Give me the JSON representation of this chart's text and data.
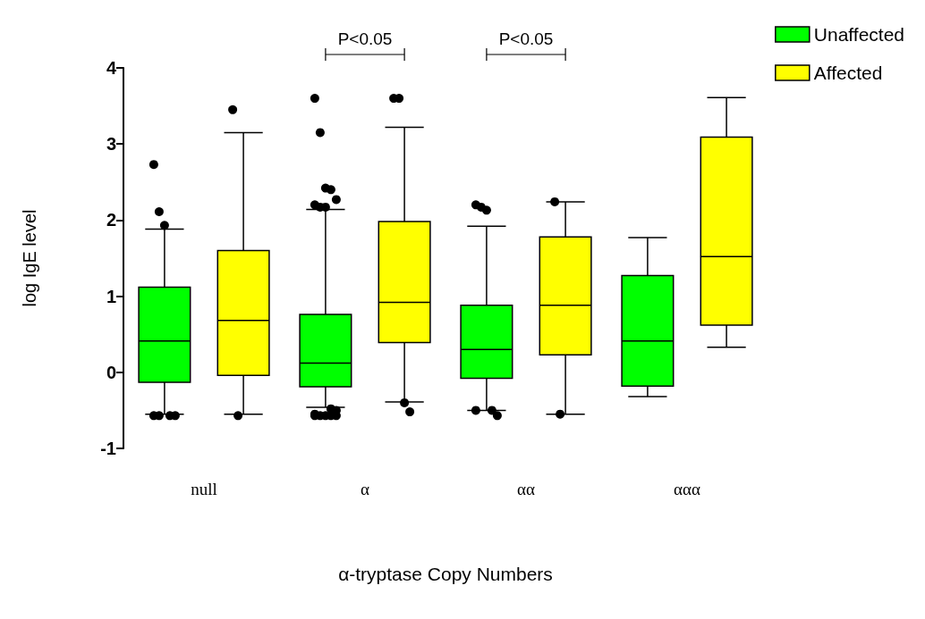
{
  "chart_data": {
    "type": "box",
    "xlabel": "α-tryptase Copy Numbers",
    "ylabel": "log IgE level",
    "categories": [
      "null",
      "α",
      "αα",
      "ααα"
    ],
    "ylim": [
      -1,
      4
    ],
    "yticks": [
      -1,
      0,
      1,
      2,
      3,
      4
    ],
    "grid": false,
    "legend": "top right",
    "annotations": [
      "P<0.05",
      "P<0.05"
    ],
    "series": [
      {
        "name": "Unaffected",
        "color": "#00ff00",
        "boxes": [
          {
            "low": -0.55,
            "q1": -0.13,
            "median": 0.41,
            "q3": 1.12,
            "high": 1.88,
            "outliers": [
              2.73,
              2.11,
              1.93,
              -0.57,
              -0.57,
              -0.57,
              -0.57
            ]
          },
          {
            "low": -0.46,
            "q1": -0.19,
            "median": 0.12,
            "q3": 0.76,
            "high": 2.14,
            "outliers": [
              3.6,
              3.15,
              2.42,
              2.4,
              2.27,
              2.2,
              2.17,
              2.17,
              -0.48,
              -0.5,
              -0.55,
              -0.57,
              -0.57,
              -0.57,
              -0.57,
              -0.57
            ]
          },
          {
            "low": -0.5,
            "q1": -0.08,
            "median": 0.3,
            "q3": 0.88,
            "high": 1.92,
            "outliers": [
              2.2,
              2.17,
              2.13,
              -0.5,
              -0.57,
              -0.5
            ]
          },
          {
            "low": -0.32,
            "q1": -0.18,
            "median": 0.41,
            "q3": 1.27,
            "high": 1.77
          }
        ]
      },
      {
        "name": "Affected",
        "color": "#ffff00",
        "boxes": [
          {
            "low": -0.55,
            "q1": -0.04,
            "median": 0.68,
            "q3": 1.6,
            "high": 3.15,
            "outliers": [
              3.45,
              -0.57
            ]
          },
          {
            "low": -0.39,
            "q1": 0.39,
            "median": 0.92,
            "q3": 1.98,
            "high": 3.22,
            "outliers": [
              3.6,
              3.6,
              -0.4,
              -0.52
            ]
          },
          {
            "low": -0.55,
            "q1": 0.23,
            "median": 0.88,
            "q3": 1.78,
            "high": 2.24,
            "outliers": [
              2.24,
              -0.55
            ]
          },
          {
            "low": 0.33,
            "q1": 0.62,
            "median": 1.52,
            "q3": 3.09,
            "high": 3.61
          }
        ]
      }
    ]
  }
}
